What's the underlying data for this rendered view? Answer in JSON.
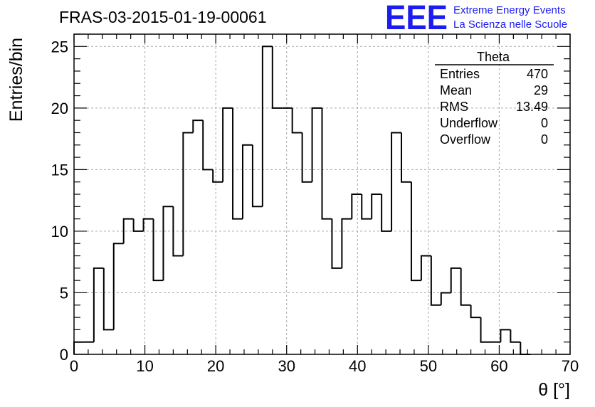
{
  "chart_data": {
    "type": "histogram",
    "title": "FRAS-03-2015-01-19-00061",
    "xlabel": "θ [°]",
    "ylabel": "Entries/bin",
    "xlim": [
      0,
      70
    ],
    "ylim": [
      0,
      26
    ],
    "grid": true,
    "bin_width": 1.4,
    "bin_start": 0,
    "x_ticks": [
      0,
      10,
      20,
      30,
      40,
      50,
      60,
      70
    ],
    "x_tick_labels": [
      "0",
      "10",
      "20",
      "30",
      "40",
      "50",
      "60",
      "70"
    ],
    "y_ticks": [
      0,
      5,
      10,
      15,
      20,
      25
    ],
    "y_tick_labels": [
      "0",
      "5",
      "10",
      "15",
      "20",
      "25"
    ],
    "values": [
      1,
      1,
      7,
      2,
      9,
      11,
      10,
      11,
      6,
      12,
      8,
      18,
      19,
      15,
      14,
      20,
      11,
      17,
      12,
      25,
      20,
      20,
      18,
      14,
      20,
      11,
      7,
      11,
      13,
      11,
      13,
      10,
      18,
      14,
      6,
      8,
      4,
      5,
      7,
      4,
      3,
      1,
      1,
      2,
      1,
      0,
      0,
      0,
      0,
      0
    ],
    "stats": {
      "name": "Theta",
      "rows": [
        {
          "label": "Entries",
          "value": "470"
        },
        {
          "label": "Mean",
          "value": "29"
        },
        {
          "label": "RMS",
          "value": "13.49"
        },
        {
          "label": "Underflow",
          "value": "0"
        },
        {
          "label": "Overflow",
          "value": "0"
        }
      ]
    }
  },
  "logo": {
    "mark": "EEE",
    "line1": "Extreme Energy Events",
    "line2": "La Scienza nelle Scuole",
    "color": "#1c1cf0"
  }
}
